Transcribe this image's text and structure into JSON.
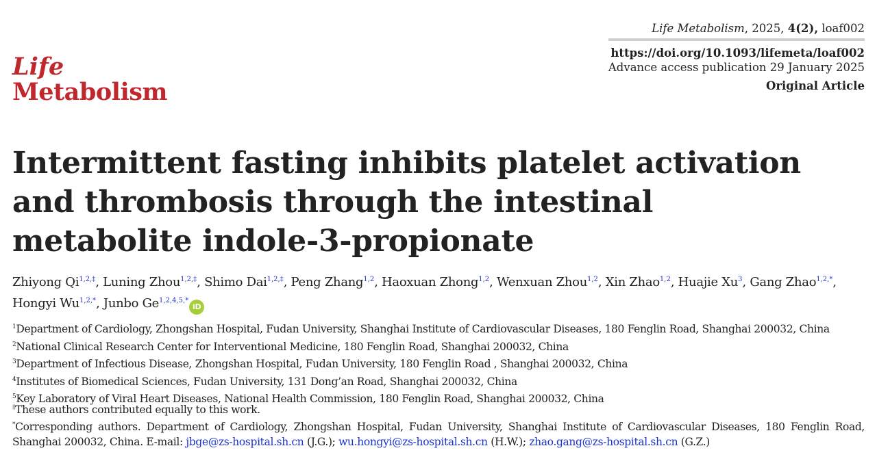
{
  "logo": {
    "line1": "Life",
    "line2": "Metabolism"
  },
  "header": {
    "journal": "Life Metabolism",
    "year_sep": ", 2025, ",
    "volume": "4(2),",
    "article_id": " loaf002",
    "doi": "https://doi.org/10.1093/lifemeta/loaf002",
    "advance": "Advance access publication 29 January 2025",
    "article_type": "Original Article"
  },
  "title": "Intermittent fasting inhibits platelet activation and thrombosis through the intestinal metabolite indole-3-propionate",
  "authors": [
    {
      "name": "Zhiyong Qi",
      "sup": "1,2,‡",
      "sep": ", "
    },
    {
      "name": "Luning Zhou",
      "sup": "1,2,‡",
      "sep": ", "
    },
    {
      "name": "Shimo Dai",
      "sup": "1,2,‡",
      "sep": ", "
    },
    {
      "name": "Peng Zhang",
      "sup": "1,2",
      "sep": ", "
    },
    {
      "name": "Haoxuan Zhong",
      "sup": "1,2",
      "sep": ", "
    },
    {
      "name": "Wenxuan Zhou",
      "sup": "1,2",
      "sep": ", "
    },
    {
      "name": "Xin Zhao",
      "sup": "1,2",
      "sep": ", "
    },
    {
      "name": "Huajie Xu",
      "sup": "3",
      "sep": ", "
    },
    {
      "name": "Gang Zhao",
      "sup": "1,2,*",
      "sep": ", "
    },
    {
      "name": "Hongyi Wu",
      "sup": "1,2,*",
      "sep": ", "
    },
    {
      "name": "Junbo Ge",
      "sup": "1,2,4,5,*",
      "sep": ", "
    }
  ],
  "orcid_label": "iD",
  "affiliations": [
    {
      "num": "1",
      "text": "Department of Cardiology, Zhongshan Hospital, Fudan University, Shanghai Institute of Cardiovascular Diseases, 180 Fenglin Road, Shanghai 200032, China"
    },
    {
      "num": "2",
      "text": "National Clinical Research Center for Interventional Medicine, 180 Fenglin Road, Shanghai 200032, China"
    },
    {
      "num": "3",
      "text": "Department of Infectious Disease, Zhongshan Hospital, Fudan University, 180 Fenglin Road , Shanghai 200032, China"
    },
    {
      "num": "4",
      "text": "Institutes of Biomedical Sciences, Fudan University, 131 Dong’an Road, Shanghai 200032, China"
    },
    {
      "num": "5",
      "text": "Key Laboratory of Viral Heart Diseases, National Health Commission, 180 Fenglin Road, Shanghai 200032, China"
    }
  ],
  "notes": {
    "equal_mark": "‡",
    "equal": "These authors contributed equally to this work.",
    "corr_mark": "*",
    "corr": "Corresponding authors. Department of Cardiology, Zhongshan Hospital, Fudan University, Shanghai Institute of Cardiovascular Diseases, 180 Fenglin Road, Shanghai 200032, China. E-mail: ",
    "emails": [
      {
        "address": "jbge@zs-hospital.sh.cn",
        "who": " (J.G.); "
      },
      {
        "address": "wu.hongyi@zs-hospital.sh.cn",
        "who": " (H.W.); "
      },
      {
        "address": "zhao.gang@zs-hospital.sh.cn",
        "who": " (G.Z.)"
      }
    ]
  },
  "colors": {
    "brand": "#c0282d",
    "link": "#1a33cc",
    "orcid": "#a6ce39"
  }
}
